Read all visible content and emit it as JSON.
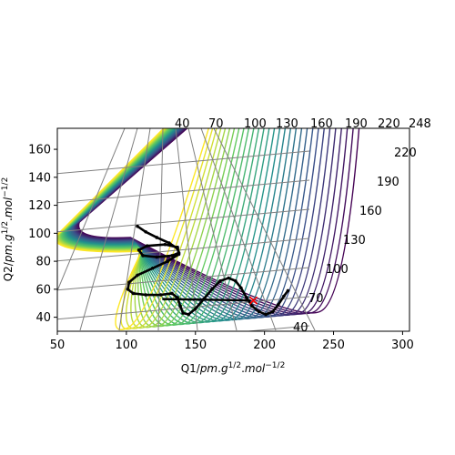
{
  "chart_data": {
    "type": "contour",
    "xlabel": "Q1/pm.g^{1/2}.mol^{-1/2}",
    "ylabel": "Q2/pm.g^{1/2}.mol^{-1/2}",
    "xlim": [
      50,
      305
    ],
    "ylim": [
      30,
      175
    ],
    "x_ticks": [
      "50",
      "100",
      "150",
      "200",
      "250",
      "300"
    ],
    "y_ticks": [
      "40",
      "60",
      "80",
      "100",
      "120",
      "140",
      "160"
    ],
    "skewed_grid_top_labels": [
      "40",
      "70",
      "100",
      "130",
      "160",
      "190",
      "220",
      "248"
    ],
    "skewed_grid_right_labels": [
      "40",
      "70",
      "100",
      "130",
      "160",
      "190",
      "220"
    ],
    "colormap": [
      "#440154",
      "#3b528b",
      "#21918c",
      "#5ec962",
      "#fde725"
    ],
    "grid": true,
    "trajectory": {
      "color": "#000000",
      "points": [
        [
          108,
          105
        ],
        [
          114,
          101
        ],
        [
          122,
          97
        ],
        [
          131,
          93
        ],
        [
          137,
          89
        ],
        [
          138,
          86
        ],
        [
          133,
          84
        ],
        [
          122,
          83
        ],
        [
          112,
          84
        ],
        [
          109,
          88
        ],
        [
          115,
          91
        ],
        [
          128,
          92
        ],
        [
          137,
          90
        ],
        [
          138,
          85
        ],
        [
          130,
          80
        ],
        [
          119,
          75
        ],
        [
          108,
          70
        ],
        [
          102,
          65
        ],
        [
          101,
          60
        ],
        [
          105,
          57
        ],
        [
          114,
          56
        ],
        [
          125,
          56
        ],
        [
          133,
          57
        ],
        [
          137,
          54
        ],
        [
          139,
          48
        ],
        [
          141,
          43
        ],
        [
          145,
          42
        ],
        [
          150,
          46
        ],
        [
          156,
          53
        ],
        [
          162,
          60
        ],
        [
          168,
          66
        ],
        [
          174,
          68
        ],
        [
          179,
          66
        ],
        [
          183,
          61
        ],
        [
          187,
          54
        ],
        [
          191,
          48
        ],
        [
          196,
          44
        ],
        [
          201,
          42
        ],
        [
          206,
          44
        ],
        [
          210,
          49
        ],
        [
          214,
          55
        ],
        [
          217,
          59
        ]
      ]
    },
    "flat_segment": [
      [
        126,
        53
      ],
      [
        190,
        52
      ]
    ],
    "marker": {
      "symbol": "x",
      "color": "#ff0000",
      "x": 192,
      "y": 52
    }
  }
}
